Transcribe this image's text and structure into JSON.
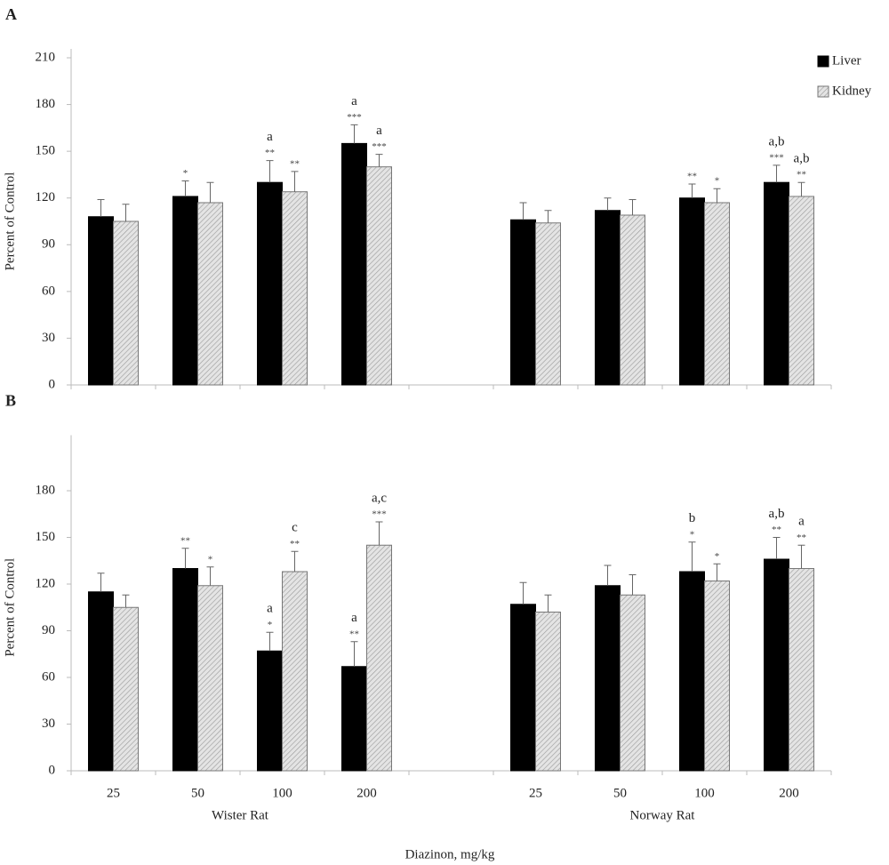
{
  "chart_data": [
    {
      "type": "bar",
      "panel_label": "A",
      "ylabel": "Percent of Control",
      "ylim": [
        0,
        210
      ],
      "yticks": [
        0,
        30,
        60,
        90,
        120,
        150,
        180,
        210
      ],
      "legend": "top-right",
      "series": [
        {
          "name": "Liver",
          "color": "#000000",
          "values": [
            108,
            121,
            130,
            155,
            null,
            106,
            112,
            120,
            130
          ],
          "errors": [
            11,
            10,
            14,
            12,
            null,
            11,
            8,
            9,
            11
          ],
          "stars": [
            null,
            "*",
            "**",
            "***",
            null,
            null,
            null,
            "**",
            "***"
          ],
          "letters": [
            null,
            null,
            "a",
            "a",
            null,
            null,
            null,
            null,
            "a,b"
          ]
        },
        {
          "name": "Kidney",
          "color": "#d9d9d9",
          "pattern": "hatch",
          "values": [
            105,
            117,
            124,
            140,
            null,
            104,
            109,
            117,
            121
          ],
          "errors": [
            11,
            13,
            13,
            8,
            null,
            8,
            10,
            9,
            9
          ],
          "stars": [
            null,
            null,
            "**",
            "***",
            null,
            null,
            null,
            "*",
            "**"
          ],
          "letters": [
            null,
            null,
            null,
            "a",
            null,
            null,
            null,
            null,
            "a,b"
          ]
        }
      ]
    },
    {
      "type": "bar",
      "panel_label": "B",
      "ylabel": "Percent of Control",
      "xlabel": "Diazinon, mg/kg",
      "categories": [
        "25",
        "50",
        "100",
        "200",
        null,
        "25",
        "50",
        "100",
        "200"
      ],
      "group_labels": [
        "Wister Rat",
        "Norway Rat"
      ],
      "ylim": [
        0,
        210
      ],
      "yticks": [
        0,
        30,
        60,
        90,
        120,
        150,
        180
      ],
      "series": [
        {
          "name": "Liver",
          "color": "#000000",
          "values": [
            115,
            130,
            77,
            67,
            null,
            107,
            119,
            128,
            136
          ],
          "errors": [
            12,
            13,
            12,
            16,
            null,
            14,
            13,
            19,
            14
          ],
          "stars": [
            null,
            "**",
            "*",
            "**",
            null,
            null,
            null,
            "*",
            "**"
          ],
          "letters": [
            null,
            null,
            "a",
            "a",
            null,
            null,
            null,
            "b",
            "a,b"
          ]
        },
        {
          "name": "Kidney",
          "color": "#d9d9d9",
          "pattern": "hatch",
          "values": [
            105,
            119,
            128,
            145,
            null,
            102,
            113,
            122,
            130
          ],
          "errors": [
            8,
            12,
            13,
            15,
            null,
            11,
            13,
            11,
            15
          ],
          "stars": [
            null,
            "*",
            "**",
            "***",
            null,
            null,
            null,
            "*",
            "**"
          ],
          "letters": [
            null,
            null,
            "c",
            "a,c",
            null,
            null,
            null,
            null,
            "a"
          ]
        }
      ]
    }
  ]
}
